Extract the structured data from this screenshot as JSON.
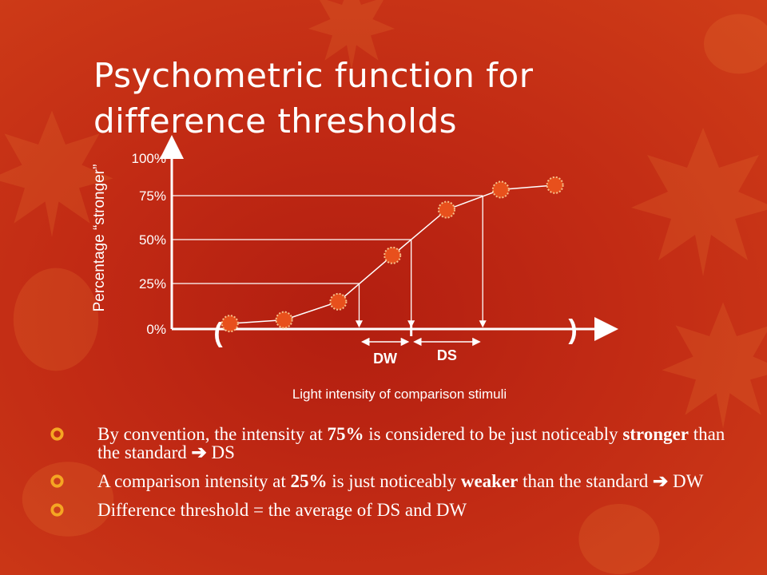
{
  "slide": {
    "title_lines": [
      "Psychometric function for",
      "difference thresholds"
    ],
    "colors": {
      "background": "#c12a14",
      "text": "#ffffff",
      "bullet_icon": "#f5a623",
      "marker": "#e8501c"
    },
    "bullets": [
      {
        "icon": "circle-bullet-icon",
        "parts": [
          {
            "text": "By convention, the intensity at ",
            "bold": false
          },
          {
            "text": "75%",
            "bold": true
          },
          {
            "text": " is considered to be just noticeably ",
            "bold": false
          },
          {
            "text": "stronger",
            "bold": true
          },
          {
            "text": " than the standard ",
            "bold": false
          },
          {
            "text": "➔",
            "bold": true
          },
          {
            "text": " DS",
            "bold": false
          }
        ]
      },
      {
        "icon": "circle-bullet-icon",
        "parts": [
          {
            "text": "A comparison intensity at ",
            "bold": false
          },
          {
            "text": "25%",
            "bold": true
          },
          {
            "text": " is just noticeably ",
            "bold": false
          },
          {
            "text": "weaker",
            "bold": true
          },
          {
            "text": " than the standard ",
            "bold": false
          },
          {
            "text": "➔",
            "bold": true
          },
          {
            "text": " DW",
            "bold": false
          }
        ]
      },
      {
        "icon": "circle-bullet-icon",
        "parts": [
          {
            "text": "Difference threshold = the average of DS and DW",
            "bold": false
          }
        ]
      }
    ]
  },
  "chart_data": {
    "type": "line",
    "title": "",
    "xlabel": "Light intensity of comparison stimuli",
    "ylabel": "Percentage “stronger”",
    "yticks": [
      "0%",
      "25%",
      "50%",
      "75%",
      "100%"
    ],
    "ylim": [
      0,
      100
    ],
    "x": [
      1,
      2,
      3,
      4,
      5,
      6,
      7
    ],
    "xlim": [
      0,
      8
    ],
    "series": [
      {
        "values": [
          3,
          5,
          15,
          41,
          67,
          79,
          82
        ]
      }
    ],
    "marker": "dashed-circle",
    "grid": false,
    "legend": "none",
    "annotations": {
      "threshold_guides": [
        25,
        50,
        75
      ],
      "intervals": [
        {
          "label": "DW",
          "from_level": 25,
          "to_level": 50
        },
        {
          "label": "DS",
          "from_level": 50,
          "to_level": 75
        }
      ],
      "range_brackets": [
        "(",
        ")"
      ]
    }
  }
}
